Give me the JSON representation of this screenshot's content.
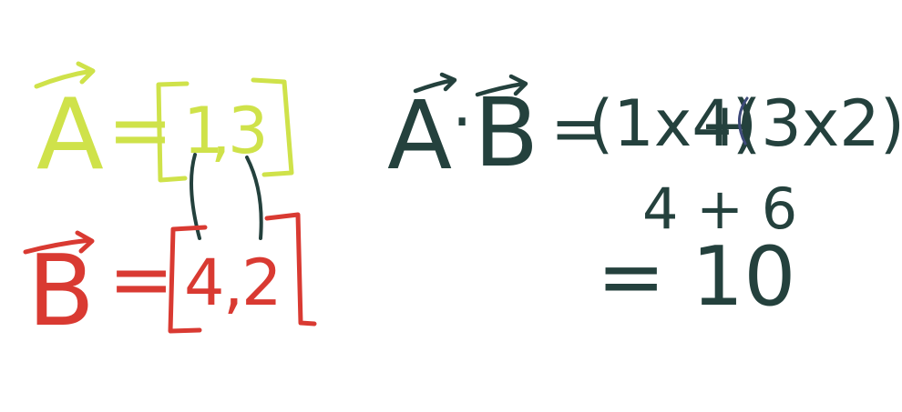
{
  "colors": {
    "background": "#ffffff",
    "vector_a": "#cfe24a",
    "vector_b": "#d93a32",
    "work": "#24413d",
    "accent_paren": "#3e4a7a"
  },
  "vector_a": {
    "symbol": "A",
    "equals": "=",
    "components": [
      "1",
      "3"
    ],
    "separator": ","
  },
  "vector_b": {
    "symbol": "B",
    "equals": "=",
    "components": [
      "4",
      "2"
    ],
    "separator": ","
  },
  "dot_product": {
    "lhs_a": "A",
    "dot": "·",
    "lhs_b": "B",
    "equals": "=",
    "term1": "(1x4)",
    "plus": "+",
    "term2": "(3x2)",
    "step2": "4 + 6",
    "result": "= 10"
  }
}
